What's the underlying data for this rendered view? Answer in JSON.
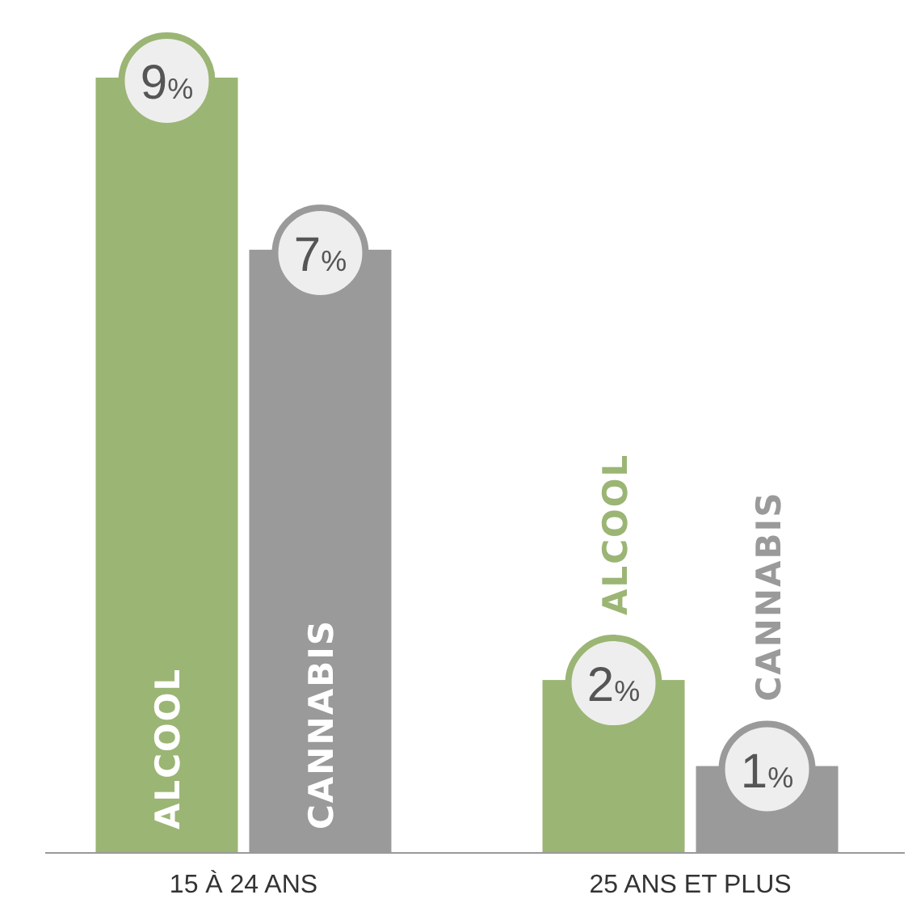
{
  "chart_data": {
    "type": "bar",
    "categories": [
      "15 À 24 ANS",
      "25 ANS ET PLUS"
    ],
    "series": [
      {
        "name": "ALCOOL",
        "color": "#9bb574",
        "values": [
          9,
          2
        ],
        "value_labels": [
          "9%",
          "2%"
        ]
      },
      {
        "name": "CANNABIS",
        "color": "#9a9a9a",
        "values": [
          7,
          1
        ],
        "value_labels": [
          "7%",
          "1%"
        ]
      }
    ]
  }
}
